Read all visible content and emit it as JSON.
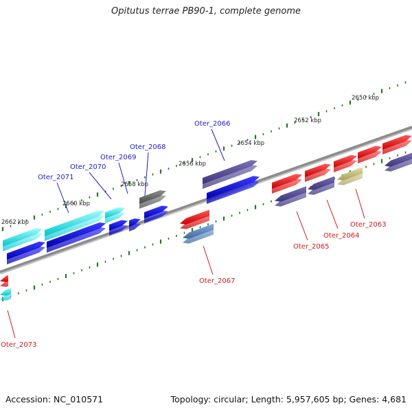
{
  "title": "Opitutus terrae PB90-1, complete genome",
  "footer": {
    "accession": "Accession: NC_010571",
    "summary": "Topology: circular; Length: 5,957,605 bp; Genes: 4,681"
  },
  "colors": {
    "background": "#ffffff",
    "backbone": "#8c8c8c",
    "tick": "#1f7a1f",
    "label_forward": "#1a1acc",
    "label_reverse": "#cc1a1a"
  },
  "scale_labels": [
    "2650 kbp",
    "2652 kbp",
    "2654 kbp",
    "2656 kbp",
    "2658 kbp",
    "2660 kbp",
    "2662 kbp"
  ],
  "gene_labels": [
    {
      "text": "Oter_2066",
      "strand": "forward"
    },
    {
      "text": "Oter_2068",
      "strand": "forward"
    },
    {
      "text": "Oter_2069",
      "strand": "forward"
    },
    {
      "text": "Oter_2070",
      "strand": "forward"
    },
    {
      "text": "Oter_2071",
      "strand": "forward"
    },
    {
      "text": "Oter_2067",
      "strand": "reverse"
    },
    {
      "text": "Oter_2065",
      "strand": "reverse"
    },
    {
      "text": "Oter_2064",
      "strand": "reverse"
    },
    {
      "text": "Oter_2063",
      "strand": "reverse"
    },
    {
      "text": "Oter_2073",
      "strand": "reverse"
    }
  ]
}
